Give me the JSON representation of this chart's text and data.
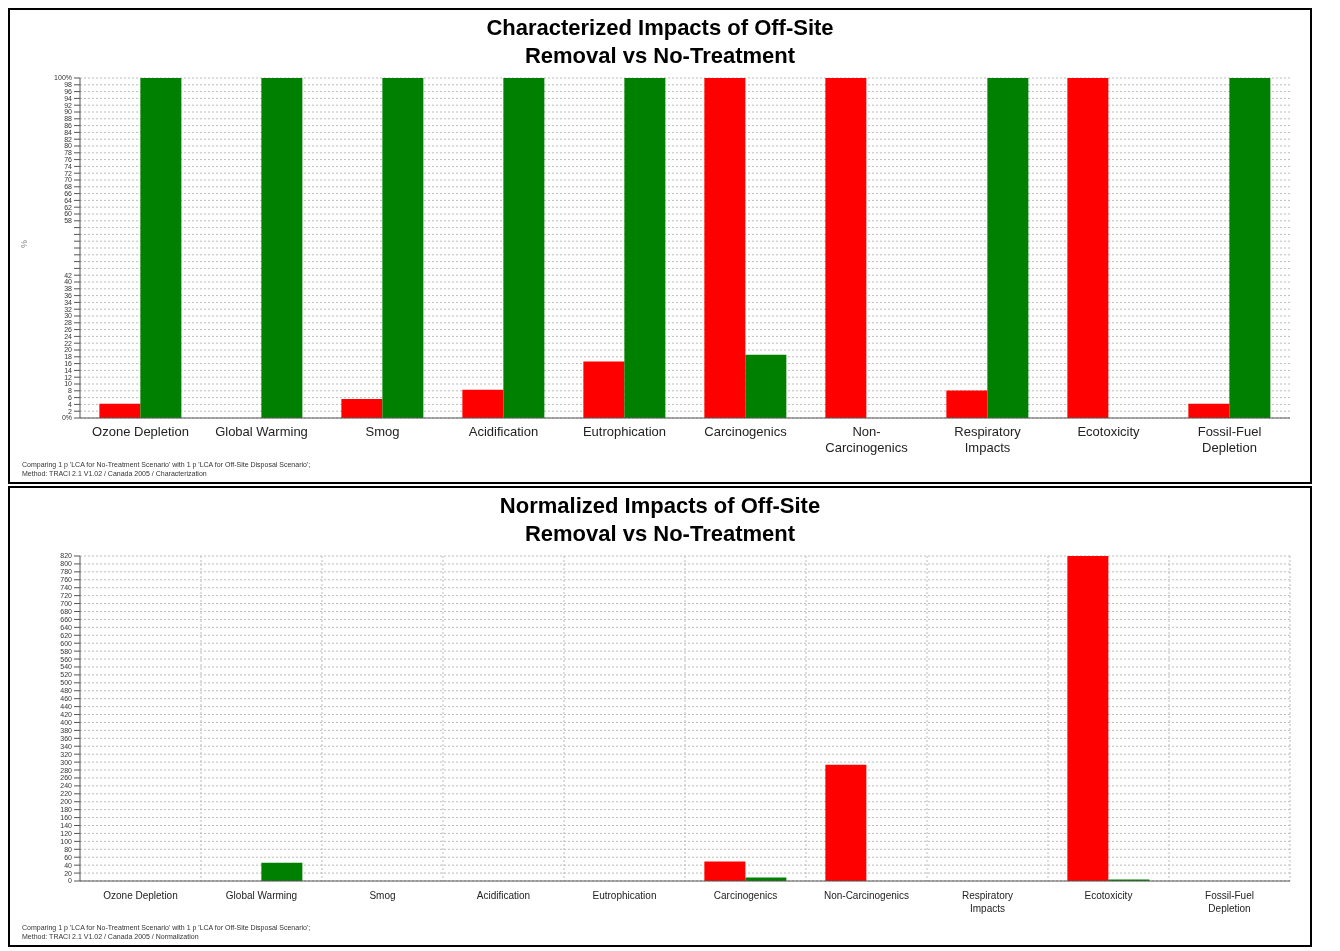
{
  "chart_data": [
    {
      "type": "bar",
      "title": "Characterized Impacts of Off-Site Removal vs No-Treatment",
      "ylabel": "%",
      "categories": [
        "Ozone Depletion",
        "Global Warming",
        "Smog",
        "Acidification",
        "Eutrophication",
        "Carcinogenics",
        "Non-Carcinogenics",
        "Respiratory Impacts",
        "Ecotoxicity",
        "Fossil-Fuel Depletion"
      ],
      "series": [
        {
          "color": "#ff0000",
          "values": [
            4.2,
            0,
            5.6,
            8.3,
            16.6,
            100,
            100,
            8.1,
            100,
            4.2
          ]
        },
        {
          "color": "#008000",
          "values": [
            100,
            100,
            100,
            100,
            100,
            18.6,
            null,
            100,
            null,
            100
          ]
        }
      ],
      "ylim": [
        0,
        100
      ],
      "yticks": [
        {
          "value": 0,
          "label": "0%"
        },
        2,
        4,
        6,
        8,
        10,
        12,
        14,
        16,
        18,
        20,
        22,
        24,
        26,
        28,
        30,
        32,
        34,
        36,
        38,
        40,
        42,
        {
          "value": 44,
          "label": null
        },
        {
          "value": 46,
          "label": null
        },
        {
          "value": 48,
          "label": null
        },
        {
          "value": 50,
          "label": null
        },
        {
          "value": 52,
          "label": null
        },
        {
          "value": 54,
          "label": null
        },
        {
          "value": 56,
          "label": null
        },
        58,
        60,
        62,
        64,
        66,
        68,
        70,
        72,
        74,
        76,
        78,
        80,
        82,
        84,
        86,
        88,
        90,
        92,
        94,
        96,
        98,
        {
          "value": 100,
          "label": "100%"
        }
      ],
      "grid": "y",
      "legend": false,
      "annotations": [
        "Comparing 1 p 'LCA for No-Treatment Scenario' with 1 p 'LCA for Off-Site Disposal Scenario';",
        "Method: TRACI 2.1 V1.02 / Canada 2005 / Characterization"
      ]
    },
    {
      "type": "bar",
      "title": "Normalized Impacts of Off-Site Removal vs No-Treatment",
      "categories": [
        "Ozone Depletion",
        "Global Warming",
        "Smog",
        "Acidification",
        "Eutrophication",
        "Carcinogenics",
        "Non-Carcinogenics",
        "Respiratory Impacts",
        "Ecotoxicity",
        "Fossil-Fuel Depletion"
      ],
      "series": [
        {
          "color": "#ff0000",
          "values": [
            0,
            0,
            0,
            0,
            0,
            49,
            293,
            0,
            820,
            0
          ]
        },
        {
          "color": "#008000",
          "values": [
            0,
            46,
            0,
            0,
            0,
            9,
            null,
            0,
            4,
            0
          ]
        }
      ],
      "ylim": [
        0,
        820
      ],
      "yticks": [
        0,
        20,
        40,
        60,
        80,
        100,
        120,
        140,
        160,
        180,
        200,
        220,
        240,
        260,
        280,
        300,
        320,
        340,
        360,
        380,
        400,
        420,
        440,
        460,
        480,
        500,
        520,
        540,
        560,
        580,
        600,
        620,
        640,
        660,
        680,
        700,
        720,
        740,
        760,
        780,
        800,
        820
      ],
      "grid": true,
      "legend": false,
      "annotations": [
        "Comparing 1 p 'LCA for No-Treatment Scenario' with 1 p 'LCA for Off-Site Disposal Scenario';",
        "Method: TRACI 2.1 V1.02 / Canada 2005 / Normalization"
      ]
    }
  ]
}
